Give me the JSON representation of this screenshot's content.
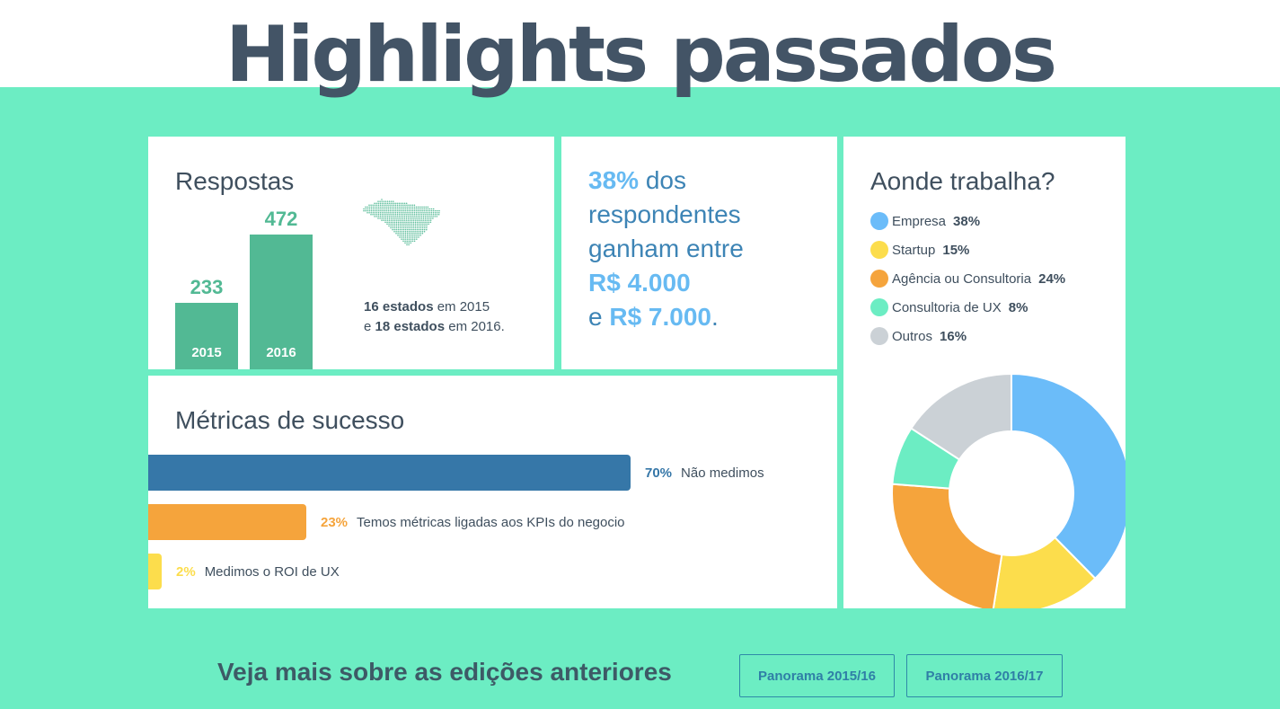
{
  "title": "Highlights passados",
  "colors": {
    "background": "#6cedc3",
    "respostas_bar": "#52b994",
    "metric_1": "#3677a8",
    "metric_2": "#f5a43c",
    "metric_3": "#fcdd4c"
  },
  "respostas": {
    "heading": "Respostas",
    "years": [
      {
        "year": "2015",
        "value": "233",
        "count": 233
      },
      {
        "year": "2016",
        "value": "472",
        "count": 472
      }
    ],
    "map_icon": "brazil-map-icon",
    "estados_line1_bold": "16 estados",
    "estados_line1_rest": " em 2015",
    "estados_line2_prefix": "e ",
    "estados_line2_bold": "18 estados",
    "estados_line2_rest": " em 2016."
  },
  "salario": {
    "pct": "38%",
    "text1": " dos respondentes ganham entre",
    "value1": "R$ 4.000",
    "conj": "e ",
    "value2": "R$ 7.000",
    "end": "."
  },
  "trabalha": {
    "heading": "Aonde trabalha?",
    "items": [
      {
        "label": "Empresa",
        "pct": "38%",
        "value": 38,
        "color": "#6bbcf9"
      },
      {
        "label": "Startup",
        "pct": "15%",
        "value": 15,
        "color": "#fcdd4c"
      },
      {
        "label": "Agência ou Consultoria",
        "pct": "24%",
        "value": 24,
        "color": "#f5a43c"
      },
      {
        "label": "Consultoria de UX",
        "pct": "8%",
        "value": 8,
        "color": "#6cedc3"
      },
      {
        "label": "Outros",
        "pct": "16%",
        "value": 16,
        "color": "#cbd1d6"
      }
    ]
  },
  "metricas": {
    "heading": "Métricas de sucesso",
    "items": [
      {
        "pct": "70%",
        "value": 70,
        "label": "Não medimos",
        "color": "#3677a8",
        "pct_color": "#3677a8"
      },
      {
        "pct": "23%",
        "value": 23,
        "label": "Temos métricas ligadas aos KPIs do negocio",
        "color": "#f5a43c",
        "pct_color": "#f5a43c"
      },
      {
        "pct": "2%",
        "value": 2,
        "label": "Medimos o ROI de UX",
        "color": "#fcdd4c",
        "pct_color": "#fcdd4c"
      }
    ]
  },
  "footer": {
    "text": "Veja mais sobre as edições anteriores",
    "buttons": [
      "Panorama 2015/16",
      "Panorama 2016/17"
    ]
  },
  "chart_data": [
    {
      "type": "bar",
      "title": "Respostas",
      "categories": [
        "2015",
        "2016"
      ],
      "values": [
        233,
        472
      ]
    },
    {
      "type": "pie",
      "title": "Aonde trabalha?",
      "categories": [
        "Empresa",
        "Startup",
        "Agência ou Consultoria",
        "Consultoria de UX",
        "Outros"
      ],
      "values": [
        38,
        15,
        24,
        8,
        16
      ]
    },
    {
      "type": "bar",
      "title": "Métricas de sucesso",
      "categories": [
        "Não medimos",
        "Temos métricas ligadas aos KPIs do negocio",
        "Medimos o ROI de UX"
      ],
      "values": [
        70,
        23,
        2
      ]
    }
  ]
}
